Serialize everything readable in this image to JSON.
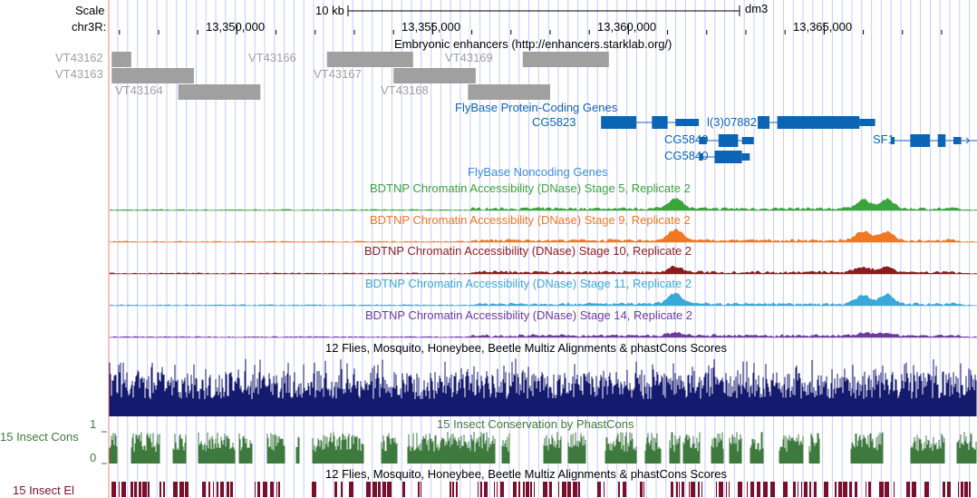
{
  "colors": {
    "guide": "#c8c8ff",
    "enhancer": "#a0a0a0",
    "enhancer_label": "#a0a0a0",
    "gene": "#0b64b4",
    "noncoding": "#3a8ede",
    "stage5": "#3aa53a",
    "stage9": "#f07820",
    "stage10": "#8c1c1c",
    "stage11": "#3aa8d8",
    "stage14": "#6e3a9e",
    "multiz": "#141a6e",
    "phastcons": "#3e7a3e",
    "elements": "#7a0f2c",
    "left_border": "#f08080"
  },
  "ruler": {
    "scale_label": "Scale",
    "chrom_label": "chr3R:",
    "scale_bar_label": "10 kb",
    "assembly": "dm3",
    "ticks": [
      "13,350,000",
      "13,355,000",
      "13,360,000",
      "13,365,000"
    ]
  },
  "enhancers": {
    "title": "Embryonic enhancers (http://enhancers.starklab.org/)",
    "items": [
      {
        "id": "VT43162",
        "start": 13346800,
        "end": 13347300
      },
      {
        "id": "VT43163",
        "start": 13346800,
        "end": 13348900
      },
      {
        "id": "VT43164",
        "start": 13348500,
        "end": 13350600
      },
      {
        "id": "VT43166",
        "start": 13352300,
        "end": 13354500
      },
      {
        "id": "VT43167",
        "start": 13354000,
        "end": 13356100
      },
      {
        "id": "VT43168",
        "start": 13355900,
        "end": 13358000
      },
      {
        "id": "VT43169",
        "start": 13357300,
        "end": 13359500
      }
    ]
  },
  "genes": {
    "title": "FlyBase Protein-Coding Genes",
    "items": [
      {
        "name": "CG5823",
        "start": 13359300,
        "end": 13361800
      },
      {
        "name": "l(3)07882",
        "start": 13363300,
        "end": 13366300
      },
      {
        "name": "CG5840",
        "start": 13361800,
        "end": 13363200
      },
      {
        "name": "CG5840",
        "start": 13361800,
        "end": 13363100
      },
      {
        "name": "SF1",
        "start": 13366700,
        "end": 13369300
      }
    ]
  },
  "noncoding": {
    "title": "FlyBase Noncoding Genes"
  },
  "dnase": [
    {
      "title": "BDTNP Chromatin Accessibility (DNase) Stage 5, Replicate 2",
      "color_key": "stage5"
    },
    {
      "title": "BDTNP Chromatin Accessibility (DNase) Stage 9, Replicate 2",
      "color_key": "stage9"
    },
    {
      "title": "BDTNP Chromatin Accessibility (DNase) Stage 10, Replicate 2",
      "color_key": "stage10"
    },
    {
      "title": "BDTNP Chromatin Accessibility (DNase) Stage 11, Replicate 2",
      "color_key": "stage11"
    },
    {
      "title": "BDTNP Chromatin Accessibility (DNase) Stage 14, Replicate 2",
      "color_key": "stage14"
    }
  ],
  "conservation": {
    "multiz_title": "12 Flies, Mosquito, Honeybee, Beetle Multiz Alignments & phastCons Scores",
    "phastcons_title": "15 Insect Conservation by PhastCons",
    "phastcons_left_label": "15 Insect Cons",
    "axis_max": "1",
    "axis_min": "0",
    "elements_title": "12 Flies, Mosquito, Honeybee, Beetle Multiz Alignments & phastCons Scores",
    "elements_left_label": "15 Insect El"
  }
}
